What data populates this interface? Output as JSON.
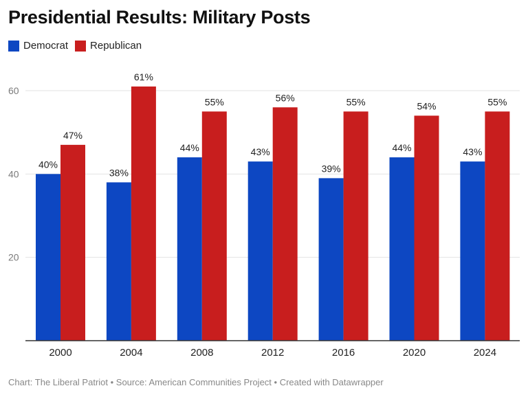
{
  "title": "Presidential Results: Military Posts",
  "footer": "Chart: The Liberal Patriot • Source: American Communities Project • Created with Datawrapper",
  "colors": {
    "democrat": "#0d47c2",
    "republican": "#c81e1e",
    "grid": "#e2e2e2",
    "axis": "#333333"
  },
  "chart_data": {
    "type": "bar",
    "title": "Presidential Results: Military Posts",
    "categories": [
      "2000",
      "2004",
      "2008",
      "2012",
      "2016",
      "2020",
      "2024"
    ],
    "series": [
      {
        "name": "Democrat",
        "color": "#0d47c2",
        "values": [
          40,
          38,
          44,
          43,
          39,
          44,
          43
        ],
        "labels": [
          "40%",
          "38%",
          "44%",
          "43%",
          "39%",
          "44%",
          "43%"
        ]
      },
      {
        "name": "Republican",
        "color": "#c81e1e",
        "values": [
          47,
          61,
          55,
          56,
          55,
          54,
          55
        ],
        "labels": [
          "47%",
          "61%",
          "55%",
          "56%",
          "55%",
          "54%",
          "55%"
        ]
      }
    ],
    "yticks": [
      20,
      40,
      60
    ],
    "ylim": [
      0,
      60
    ],
    "grid": true,
    "legend": "top-left"
  }
}
